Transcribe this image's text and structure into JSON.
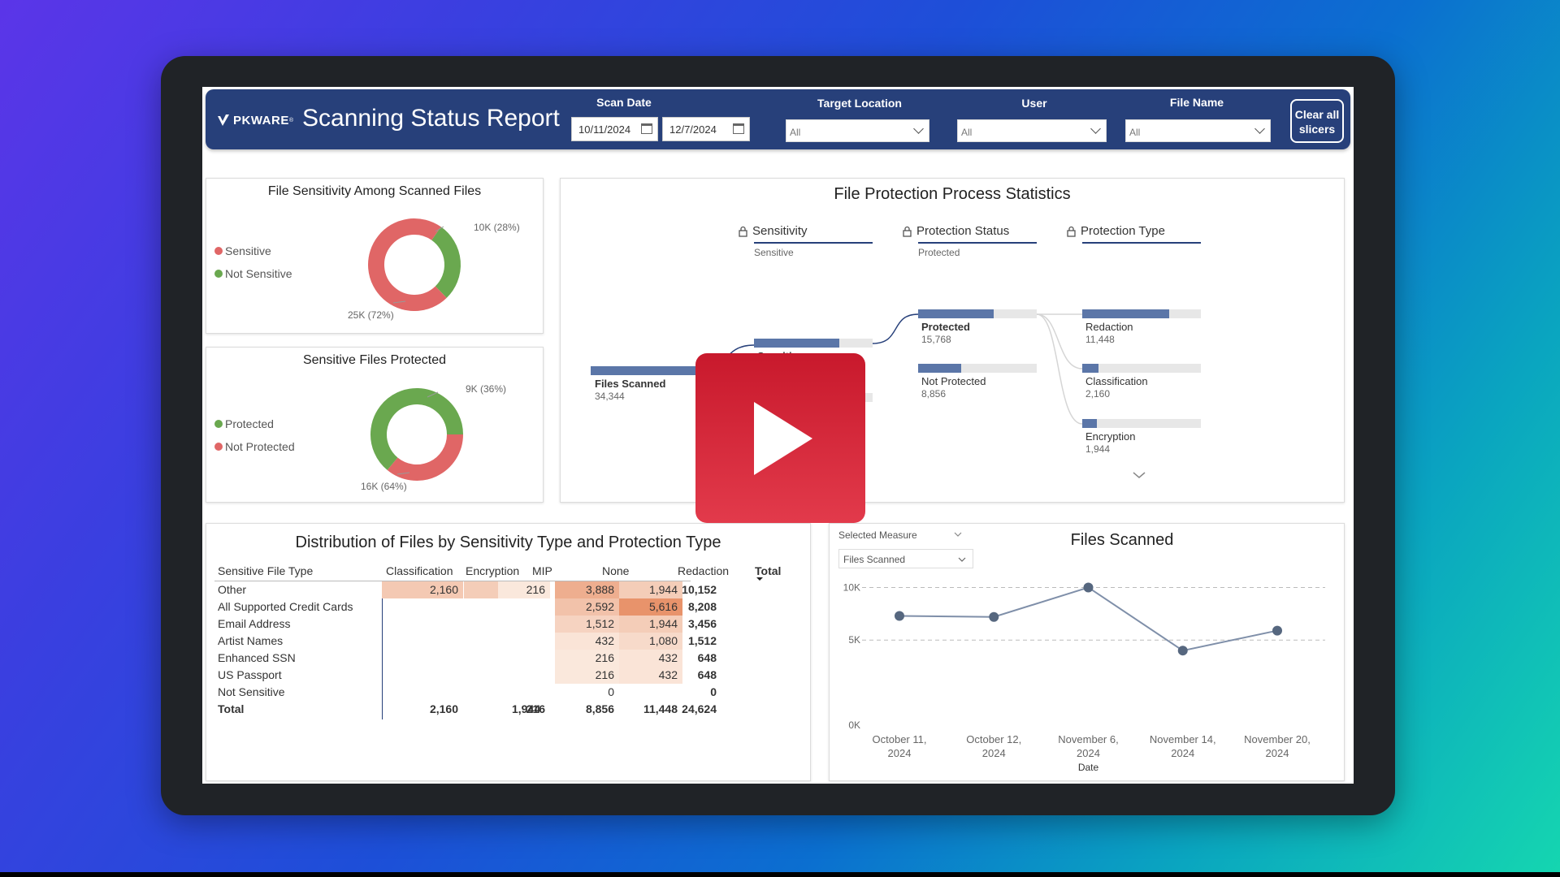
{
  "header": {
    "logo_text": "PKWARE",
    "logo_reg": "®",
    "title": "Scanning Status Report",
    "filters": {
      "scan_date_label": "Scan Date",
      "scan_date_start": "10/11/2024",
      "scan_date_end": "12/7/2024",
      "target_location_label": "Target Location",
      "target_location_value": "All",
      "user_label": "User",
      "user_value": "All",
      "file_name_label": "File Name",
      "file_name_value": "All"
    },
    "clear_button_line1": "Clear all",
    "clear_button_line2": "slicers",
    "brand_color": "#27407a"
  },
  "sensitivity_card": {
    "title": "File Sensitivity Among Scanned Files",
    "legend": [
      {
        "label": "Sensitive",
        "color": "#e06666"
      },
      {
        "label": "Not Sensitive",
        "color": "#6aa84f"
      }
    ],
    "annotation_top": "10K (28%)",
    "annotation_bottom": "25K (72%)",
    "slices": [
      {
        "label": "Not Sensitive",
        "value": 10,
        "percent": 28,
        "color": "#6aa84f"
      },
      {
        "label": "Sensitive",
        "value": 25,
        "percent": 72,
        "color": "#e06666"
      }
    ]
  },
  "protected_card": {
    "title": "Sensitive Files Protected",
    "legend": [
      {
        "label": "Protected",
        "color": "#6aa84f"
      },
      {
        "label": "Not Protected",
        "color": "#e06666"
      }
    ],
    "annotation_top": "9K (36%)",
    "annotation_bottom": "16K (64%)",
    "slices": [
      {
        "label": "Not Protected",
        "value": 9,
        "percent": 36,
        "color": "#e06666"
      },
      {
        "label": "Protected",
        "value": 16,
        "percent": 64,
        "color": "#6aa84f"
      }
    ]
  },
  "tree": {
    "title": "File Protection Process Statistics",
    "levels": [
      {
        "label": "Sensitivity",
        "sub": "Sensitive"
      },
      {
        "label": "Protection Status",
        "sub": "Protected"
      },
      {
        "label": "Protection Type",
        "sub": ""
      }
    ],
    "root": {
      "label": "Files Scanned",
      "value": "34,344",
      "fraction": 1.0
    },
    "sensitivity_nodes": [
      {
        "label": "Sensitive",
        "fraction": 0.72
      },
      {
        "label": "",
        "fraction": 0.28
      }
    ],
    "status_nodes": [
      {
        "label": "Protected",
        "value": "15,768",
        "fraction": 0.64
      },
      {
        "label": "Not Protected",
        "value": "8,856",
        "fraction": 0.36
      }
    ],
    "type_nodes": [
      {
        "label": "Redaction",
        "value": "11,448",
        "fraction": 0.73
      },
      {
        "label": "Classification",
        "value": "2,160",
        "fraction": 0.14
      },
      {
        "label": "Encryption",
        "value": "1,944",
        "fraction": 0.12
      }
    ]
  },
  "matrix": {
    "title": "Distribution of Files by Sensitivity Type and Protection Type",
    "columns": [
      "Sensitive File Type",
      "Classification",
      "Encryption",
      "MIP",
      "None",
      "Redaction",
      "Total"
    ],
    "rows": [
      {
        "label": "Other",
        "cells": [
          "2,160",
          "1,944",
          "216",
          "3,888",
          "1,944",
          "10,152"
        ]
      },
      {
        "label": "All Supported Credit Cards",
        "cells": [
          "",
          "",
          "",
          "2,592",
          "5,616",
          "8,208"
        ]
      },
      {
        "label": "Email Address",
        "cells": [
          "",
          "",
          "",
          "1,512",
          "1,944",
          "3,456"
        ]
      },
      {
        "label": "Artist Names",
        "cells": [
          "",
          "",
          "",
          "432",
          "1,080",
          "1,512"
        ]
      },
      {
        "label": "Enhanced SSN",
        "cells": [
          "",
          "",
          "",
          "216",
          "432",
          "648"
        ]
      },
      {
        "label": "US Passport",
        "cells": [
          "",
          "",
          "",
          "216",
          "432",
          "648"
        ]
      },
      {
        "label": "Not Sensitive",
        "cells": [
          "",
          "",
          "",
          "0",
          "",
          "0"
        ]
      }
    ],
    "total_row": {
      "label": "Total",
      "cells": [
        "2,160",
        "1,944",
        "216",
        "8,856",
        "11,448",
        "24,624"
      ]
    }
  },
  "line_card": {
    "selected_measure_label": "Selected Measure",
    "measure_value": "Files Scanned",
    "title": "Files Scanned"
  },
  "chart_data": {
    "type": "line",
    "title": "Files Scanned",
    "xlabel": "Date",
    "ylabel": "",
    "x": [
      "October 11, 2024",
      "October 12, 2024",
      "November 6, 2024",
      "November 14, 2024",
      "November 20, 2024"
    ],
    "y_ticks": [
      "0K",
      "5K",
      "10K"
    ],
    "ylim": [
      0,
      10500
    ],
    "series": [
      {
        "values": [
          7300,
          7200,
          10000,
          4000,
          5900
        ]
      }
    ],
    "grid": true,
    "color": "#7f8fa9"
  },
  "play_button": {
    "icon": "play-icon",
    "color": "#d9283a"
  }
}
